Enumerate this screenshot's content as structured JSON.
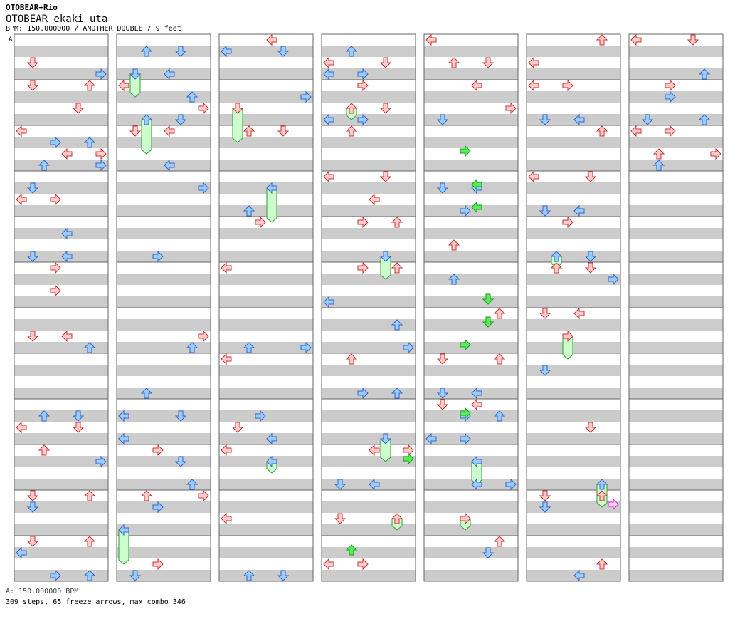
{
  "header": {
    "artist": "OTOBEAR+Rio",
    "title": "OTOBEAR ekaki uta",
    "info": "BPM: 150.000000 / ANOTHER DOUBLE / 9 feet"
  },
  "chart_data": {
    "type": "step-chart",
    "mode": "ANOTHER DOUBLE",
    "level": "9 feet",
    "bpm": 150.0,
    "columns": 7,
    "measures_per_column": 12,
    "bpm_marker_label": "A",
    "steps": 309,
    "freeze_arrows": 65,
    "max_combo": 346
  },
  "footer": {
    "bpm_line": "A: 150.000000 BPM",
    "summary": "309 steps, 65 freeze arrows, max combo 346"
  },
  "colors": {
    "stripe": "#cccccc",
    "frame": "#666666",
    "red_arrow": "#ffcccc",
    "blue_arrow": "#99ccff",
    "green_arrow": "#55ee55",
    "freeze": "#ccffcc"
  }
}
